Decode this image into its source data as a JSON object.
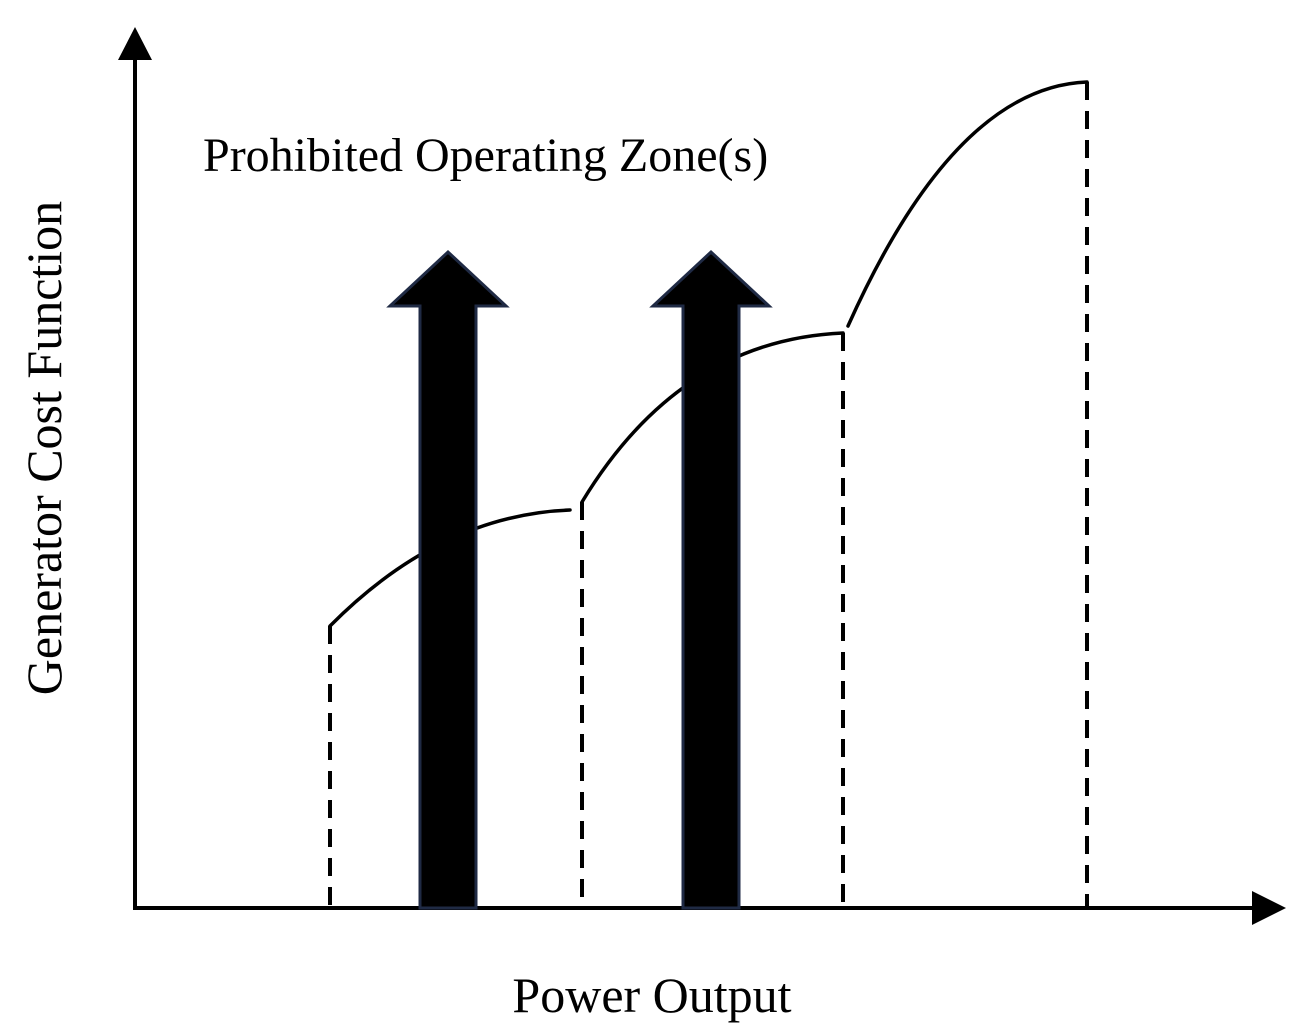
{
  "diagram": {
    "title": "Prohibited Operating Zone(s)",
    "x_axis_label": "Power Output",
    "y_axis_label": "Generator Cost Function",
    "curve_segments": 3,
    "prohibited_zones": 2,
    "colors": {
      "line": "#000000",
      "arrow_fill": "#000000",
      "arrow_outline": "#1f2a44",
      "background": "#ffffff"
    }
  }
}
